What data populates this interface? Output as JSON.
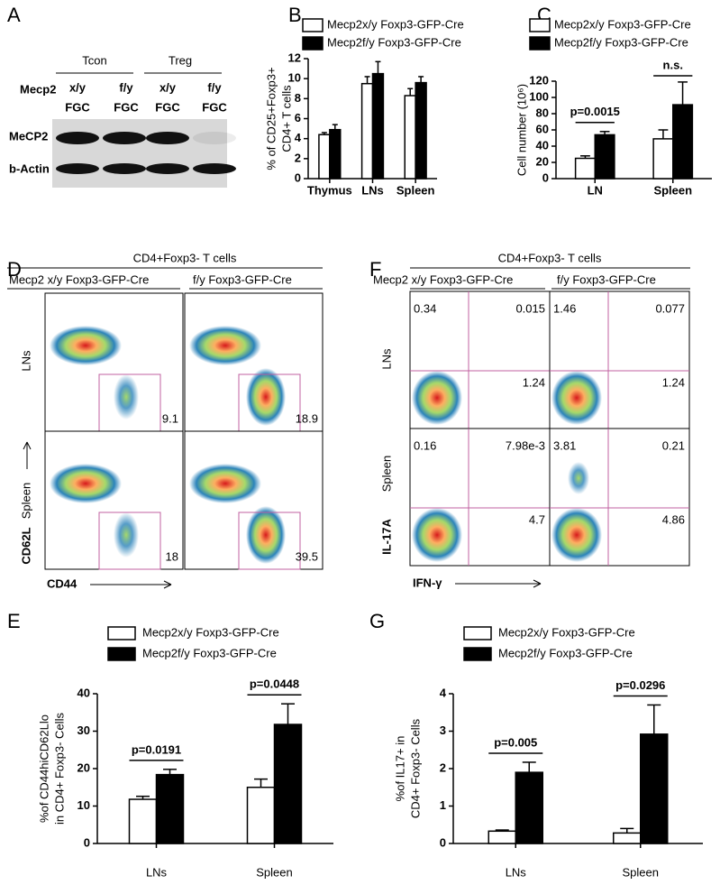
{
  "panel_labels": [
    "A",
    "B",
    "C",
    "D",
    "E",
    "F",
    "G"
  ],
  "blot": {
    "groups": [
      "Tcon",
      "Treg"
    ],
    "genotype_label": "Mecp2",
    "genotypes": [
      "x/y",
      "f/y",
      "x/y",
      "f/y"
    ],
    "lanes": [
      "FGC",
      "FGC",
      "FGC",
      "FGC"
    ],
    "rows": [
      "MeCP2",
      "b-Actin"
    ]
  },
  "flow_cd44": {
    "title": "CD4+Foxp3- T cells",
    "columns": [
      "Mecp2 x/y Foxp3-GFP-Cre",
      "f/y Foxp3-GFP-Cre"
    ],
    "rows": [
      "LNs",
      "Spleen"
    ],
    "y_label": "CD62L",
    "x_label": "CD44",
    "gates": [
      [
        "9.1",
        "18.9"
      ],
      [
        "18",
        "39.5"
      ]
    ]
  },
  "flow_il17": {
    "title": "CD4+Foxp3- T cells",
    "columns": [
      "Mecp2  x/y Foxp3-GFP-Cre",
      "f/y Foxp3-GFP-Cre"
    ],
    "rows": [
      "LNs",
      "Spleen"
    ],
    "y_label": "IL-17A",
    "x_label": "IFN-γ",
    "quadrants": [
      [
        [
          "0.34",
          "0.015",
          "1.24"
        ],
        [
          "1.46",
          "0.077",
          "1.24"
        ]
      ],
      [
        [
          "0.16",
          "7.98e-3",
          "4.7"
        ],
        [
          "3.81",
          "0.21",
          "4.86"
        ]
      ]
    ]
  },
  "chart_data": [
    {
      "type": "bar",
      "y_label": [
        "% of CD25+Foxp3+",
        "CD4+ T cells"
      ],
      "categories": [
        "Thymus",
        "LNs",
        "Spleen"
      ],
      "series": [
        {
          "name": "Mecp2x/y Foxp3-GFP-Cre",
          "color": "#ffffff",
          "values": [
            4.4,
            9.5,
            8.3
          ],
          "error": [
            0.2,
            0.7,
            0.7
          ]
        },
        {
          "name": "Mecp2f/y Foxp3-GFP-Cre",
          "color": "#000000",
          "values": [
            4.9,
            10.5,
            9.6
          ],
          "error": [
            0.5,
            1.2,
            0.6
          ]
        }
      ],
      "ylim": [
        0,
        12
      ],
      "yticks": [
        0,
        2,
        4,
        6,
        8,
        10,
        12
      ]
    },
    {
      "type": "bar",
      "y_label": [
        "Cell number (10⁶)"
      ],
      "categories": [
        "LN",
        "Spleen"
      ],
      "series": [
        {
          "name": "Mecp2x/y Foxp3-GFP-Cre",
          "color": "#ffffff",
          "values": [
            25,
            49
          ],
          "error": [
            3,
            11
          ]
        },
        {
          "name": "Mecp2f/y Foxp3-GFP-Cre",
          "color": "#000000",
          "values": [
            54,
            91
          ],
          "error": [
            4,
            28
          ]
        }
      ],
      "annotations": [
        "p=0.0015",
        "n.s."
      ],
      "ylim": [
        0,
        120
      ],
      "yticks": [
        0,
        20,
        40,
        60,
        80,
        100,
        120
      ]
    },
    {
      "type": "bar",
      "y_label": [
        "%of CD44hiCD62Llo",
        "in CD4+ Foxp3- Cells"
      ],
      "categories": [
        "LNs",
        "Spleen"
      ],
      "series": [
        {
          "name": "Mecp2x/y Foxp3-GFP-Cre",
          "color": "#ffffff",
          "values": [
            11.8,
            15
          ],
          "error": [
            0.8,
            2.2
          ]
        },
        {
          "name": "Mecp2f/y Foxp3-GFP-Cre",
          "color": "#000000",
          "values": [
            18.4,
            31.8
          ],
          "error": [
            1.4,
            5.5
          ]
        }
      ],
      "annotations": [
        "p=0.0191",
        "p=0.0448"
      ],
      "ylim": [
        0,
        40
      ],
      "yticks": [
        0,
        10,
        20,
        30,
        40
      ]
    },
    {
      "type": "bar",
      "y_label": [
        "%of IL17+ in",
        "CD4+ Foxp3- Cells"
      ],
      "categories": [
        "LNs",
        "Spleen"
      ],
      "series": [
        {
          "name": "Mecp2x/y Foxp3-GFP-Cre",
          "color": "#ffffff",
          "values": [
            0.33,
            0.28
          ],
          "error": [
            0.03,
            0.12
          ]
        },
        {
          "name": "Mecp2f/y Foxp3-GFP-Cre",
          "color": "#000000",
          "values": [
            1.9,
            2.92
          ],
          "error": [
            0.27,
            0.78
          ]
        }
      ],
      "annotations": [
        "p=0.005",
        "p=0.0296"
      ],
      "ylim": [
        0,
        4
      ],
      "yticks": [
        0,
        1,
        2,
        3,
        4
      ]
    }
  ]
}
